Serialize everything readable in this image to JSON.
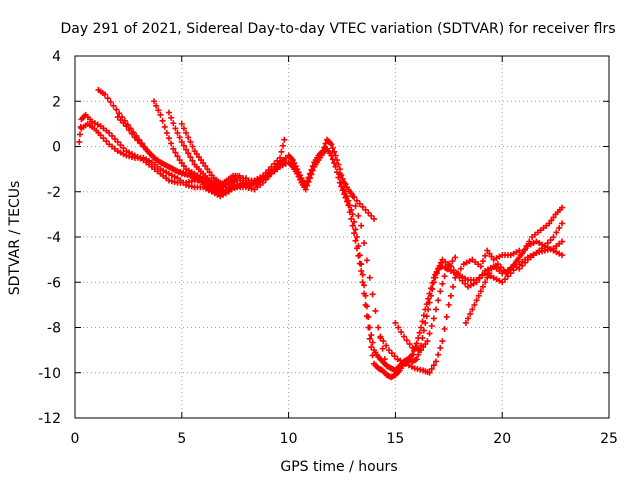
{
  "chart_data": {
    "type": "scatter",
    "title": "Day 291 of 2021, Sidereal Day-to-day VTEC variation (SDTVAR) for receiver flrs",
    "xlabel": "GPS time / hours",
    "ylabel": "SDTVAR / TECUs",
    "xlim": [
      0,
      25
    ],
    "ylim": [
      -12,
      4
    ],
    "xticks": [
      0,
      5,
      10,
      15,
      20,
      25
    ],
    "yticks": [
      -12,
      -10,
      -8,
      -6,
      -4,
      -2,
      0,
      2,
      4
    ],
    "grid": true,
    "marker": "plus",
    "series": [
      {
        "color": "#ff0000",
        "points": [
          [
            0.2,
            0.2
          ],
          [
            0.3,
            1.2
          ],
          [
            0.5,
            1.4
          ],
          [
            0.8,
            1.1
          ],
          [
            1.2,
            0.9
          ],
          [
            1.6,
            0.6
          ],
          [
            2.0,
            0.2
          ],
          [
            2.4,
            -0.2
          ],
          [
            2.8,
            -0.4
          ],
          [
            3.2,
            -0.6
          ],
          [
            3.6,
            -0.9
          ],
          [
            4.0,
            -1.2
          ],
          [
            4.4,
            -1.5
          ],
          [
            4.8,
            -1.6
          ],
          [
            5.2,
            -1.6
          ],
          [
            5.6,
            -1.5
          ],
          [
            6.0,
            -1.5
          ],
          [
            6.4,
            -1.8
          ],
          [
            6.8,
            -2.1
          ],
          [
            7.2,
            -1.9
          ],
          [
            7.6,
            -1.8
          ],
          [
            8.0,
            -1.8
          ],
          [
            8.4,
            -1.9
          ],
          [
            8.8,
            -1.6
          ],
          [
            9.2,
            -1.2
          ],
          [
            9.6,
            -0.9
          ],
          [
            10.0,
            -0.7
          ],
          [
            10.2,
            -0.9
          ],
          [
            10.4,
            -1.2
          ],
          [
            10.6,
            -1.6
          ],
          [
            10.8,
            -1.9
          ],
          [
            11.0,
            -1.4
          ],
          [
            11.2,
            -0.9
          ],
          [
            11.4,
            -0.6
          ],
          [
            11.6,
            -0.3
          ],
          [
            11.8,
            -0.1
          ],
          [
            12.0,
            -0.4
          ],
          [
            12.2,
            -0.9
          ],
          [
            12.4,
            -1.6
          ],
          [
            12.6,
            -2.1
          ],
          [
            12.8,
            -2.6
          ],
          [
            13.0,
            -3.5
          ],
          [
            13.2,
            -4.5
          ],
          [
            13.4,
            -5.5
          ],
          [
            13.6,
            -7.0
          ],
          [
            13.8,
            -8.5
          ],
          [
            14.0,
            -9.6
          ],
          [
            14.2,
            -9.8
          ],
          [
            14.4,
            -9.9
          ],
          [
            14.6,
            -10.1
          ],
          [
            14.8,
            -10.2
          ],
          [
            15.0,
            -10.1
          ],
          [
            15.2,
            -9.9
          ],
          [
            15.4,
            -9.6
          ],
          [
            15.6,
            -9.4
          ],
          [
            15.8,
            -9.2
          ],
          [
            16.0,
            -8.7
          ],
          [
            16.2,
            -8.0
          ],
          [
            16.4,
            -7.2
          ],
          [
            16.6,
            -6.5
          ],
          [
            16.8,
            -5.8
          ],
          [
            17.0,
            -5.4
          ],
          [
            17.2,
            -5.3
          ],
          [
            17.6,
            -5.5
          ],
          [
            18.0,
            -5.7
          ],
          [
            18.4,
            -5.9
          ],
          [
            18.8,
            -5.9
          ],
          [
            19.2,
            -5.6
          ],
          [
            19.6,
            -5.8
          ],
          [
            20.0,
            -6.0
          ],
          [
            20.4,
            -5.6
          ],
          [
            20.8,
            -5.2
          ],
          [
            21.2,
            -4.9
          ],
          [
            21.6,
            -4.7
          ],
          [
            22.0,
            -4.6
          ],
          [
            22.4,
            -4.5
          ],
          [
            22.8,
            -4.2
          ]
        ]
      },
      {
        "color": "#ff0000",
        "points": [
          [
            0.3,
            0.8
          ],
          [
            0.6,
            1.0
          ],
          [
            0.9,
            0.8
          ],
          [
            1.2,
            0.5
          ],
          [
            1.6,
            0.1
          ],
          [
            2.0,
            -0.2
          ],
          [
            2.4,
            -0.4
          ],
          [
            2.8,
            -0.5
          ],
          [
            3.2,
            -0.5
          ],
          [
            3.6,
            -0.7
          ],
          [
            4.0,
            -1.0
          ],
          [
            4.4,
            -1.2
          ],
          [
            4.8,
            -1.4
          ],
          [
            5.2,
            -1.7
          ],
          [
            5.6,
            -1.8
          ],
          [
            6.0,
            -1.8
          ],
          [
            6.4,
            -2.0
          ],
          [
            6.8,
            -2.2
          ],
          [
            7.2,
            -2.0
          ],
          [
            7.6,
            -1.7
          ],
          [
            8.0,
            -1.6
          ],
          [
            8.4,
            -1.6
          ],
          [
            8.8,
            -1.4
          ],
          [
            9.2,
            -1.0
          ],
          [
            9.6,
            -0.7
          ],
          [
            10.0,
            -0.4
          ],
          [
            10.2,
            -0.6
          ],
          [
            10.4,
            -1.0
          ],
          [
            10.6,
            -1.4
          ],
          [
            10.8,
            -1.7
          ],
          [
            11.0,
            -1.2
          ],
          [
            11.2,
            -0.7
          ],
          [
            11.4,
            -0.4
          ],
          [
            11.6,
            -0.2
          ],
          [
            11.8,
            0.3
          ],
          [
            12.0,
            0.1
          ],
          [
            12.2,
            -0.4
          ],
          [
            12.4,
            -1.0
          ],
          [
            12.6,
            -1.8
          ],
          [
            12.8,
            -2.4
          ],
          [
            13.0,
            -3.0
          ],
          [
            13.2,
            -4.0
          ],
          [
            13.4,
            -5.2
          ],
          [
            13.6,
            -6.6
          ],
          [
            13.8,
            -8.0
          ],
          [
            14.0,
            -9.0
          ],
          [
            14.2,
            -9.3
          ],
          [
            14.4,
            -9.5
          ],
          [
            14.6,
            -9.7
          ],
          [
            14.8,
            -9.8
          ],
          [
            15.0,
            -9.9
          ],
          [
            15.2,
            -9.7
          ],
          [
            15.4,
            -9.5
          ],
          [
            15.6,
            -9.4
          ],
          [
            15.8,
            -9.5
          ],
          [
            16.0,
            -9.4
          ],
          [
            16.2,
            -8.8
          ],
          [
            16.4,
            -7.8
          ],
          [
            16.6,
            -6.9
          ],
          [
            16.8,
            -6.0
          ],
          [
            17.0,
            -5.4
          ],
          [
            17.2,
            -5.0
          ],
          [
            17.6,
            -5.3
          ],
          [
            18.0,
            -5.8
          ],
          [
            18.4,
            -6.2
          ],
          [
            18.8,
            -6.0
          ],
          [
            19.2,
            -5.5
          ],
          [
            19.6,
            -5.3
          ],
          [
            20.0,
            -5.6
          ],
          [
            20.4,
            -5.4
          ],
          [
            20.8,
            -4.9
          ],
          [
            21.2,
            -4.4
          ],
          [
            21.6,
            -4.2
          ],
          [
            22.0,
            -4.4
          ],
          [
            22.4,
            -4.6
          ],
          [
            22.8,
            -4.8
          ]
        ]
      },
      {
        "color": "#ff0000",
        "points": [
          [
            1.1,
            2.5
          ],
          [
            1.4,
            2.3
          ],
          [
            1.8,
            1.8
          ],
          [
            2.2,
            1.3
          ],
          [
            2.6,
            0.8
          ],
          [
            3.0,
            0.3
          ],
          [
            3.4,
            -0.2
          ],
          [
            3.8,
            -0.6
          ],
          [
            4.2,
            -0.8
          ],
          [
            4.6,
            -1.0
          ],
          [
            5.0,
            -1.2
          ],
          [
            5.4,
            -1.3
          ],
          [
            5.8,
            -1.5
          ],
          [
            6.2,
            -1.7
          ],
          [
            6.6,
            -1.9
          ],
          [
            7.0,
            -2.0
          ],
          [
            7.4,
            -1.8
          ],
          [
            7.8,
            -1.7
          ],
          [
            8.2,
            -1.7
          ],
          [
            8.6,
            -1.6
          ],
          [
            9.0,
            -1.3
          ],
          [
            9.4,
            -1.0
          ],
          [
            9.8,
            -0.6
          ]
        ]
      },
      {
        "color": "#ff0000",
        "points": [
          [
            2.0,
            1.3
          ],
          [
            2.4,
            0.9
          ],
          [
            2.8,
            0.4
          ],
          [
            3.2,
            0.0
          ],
          [
            3.6,
            -0.4
          ],
          [
            4.0,
            -0.7
          ],
          [
            4.4,
            -0.9
          ],
          [
            4.8,
            -1.1
          ],
          [
            5.2,
            -1.2
          ],
          [
            5.6,
            -1.3
          ],
          [
            6.0,
            -1.6
          ],
          [
            6.4,
            -1.9
          ],
          [
            6.8,
            -2.0
          ],
          [
            7.2,
            -1.7
          ],
          [
            7.6,
            -1.5
          ],
          [
            8.0,
            -1.5
          ],
          [
            8.4,
            -1.5
          ],
          [
            8.8,
            -1.3
          ],
          [
            9.2,
            -0.9
          ],
          [
            9.6,
            -0.5
          ],
          [
            9.8,
            0.3
          ]
        ]
      },
      {
        "color": "#ff0000",
        "points": [
          [
            3.7,
            2.0
          ],
          [
            4.0,
            1.4
          ],
          [
            4.3,
            0.6
          ],
          [
            4.6,
            -0.1
          ],
          [
            4.9,
            -0.6
          ],
          [
            5.2,
            -1.0
          ],
          [
            5.6,
            -1.2
          ],
          [
            6.0,
            -1.4
          ],
          [
            6.4,
            -1.6
          ],
          [
            6.8,
            -1.8
          ],
          [
            7.2,
            -1.6
          ],
          [
            7.6,
            -1.4
          ],
          [
            8.0,
            -1.4
          ]
        ]
      },
      {
        "color": "#ff0000",
        "points": [
          [
            4.4,
            1.5
          ],
          [
            4.7,
            0.8
          ],
          [
            5.0,
            0.2
          ],
          [
            5.3,
            -0.3
          ],
          [
            5.6,
            -0.8
          ],
          [
            5.9,
            -1.1
          ],
          [
            6.2,
            -1.4
          ],
          [
            6.5,
            -1.6
          ],
          [
            6.8,
            -1.7
          ],
          [
            7.1,
            -1.5
          ],
          [
            7.4,
            -1.3
          ],
          [
            7.7,
            -1.3
          ]
        ]
      },
      {
        "color": "#ff0000",
        "points": [
          [
            5.0,
            1.0
          ],
          [
            5.3,
            0.4
          ],
          [
            5.6,
            -0.2
          ],
          [
            5.9,
            -0.6
          ],
          [
            6.2,
            -1.0
          ],
          [
            6.5,
            -1.4
          ],
          [
            6.8,
            -1.6
          ]
        ]
      },
      {
        "color": "#ff0000",
        "points": [
          [
            12.4,
            -1.2
          ],
          [
            12.8,
            -1.9
          ],
          [
            13.2,
            -2.4
          ],
          [
            13.6,
            -2.8
          ],
          [
            14.0,
            -3.2
          ]
        ]
      },
      {
        "color": "#ff0000",
        "points": [
          [
            12.6,
            -1.6
          ],
          [
            13.0,
            -2.2
          ],
          [
            13.4,
            -3.5
          ],
          [
            13.8,
            -5.8
          ],
          [
            14.2,
            -8.0
          ],
          [
            14.5,
            -9.4
          ]
        ]
      },
      {
        "color": "#ff0000",
        "points": [
          [
            14.3,
            -8.4
          ],
          [
            14.7,
            -9.0
          ],
          [
            15.1,
            -9.4
          ],
          [
            15.5,
            -9.6
          ],
          [
            15.9,
            -9.8
          ],
          [
            16.3,
            -9.9
          ],
          [
            16.6,
            -10.0
          ],
          [
            16.9,
            -9.5
          ],
          [
            17.2,
            -8.6
          ],
          [
            17.5,
            -7.0
          ],
          [
            17.8,
            -5.8
          ],
          [
            18.2,
            -5.2
          ],
          [
            18.6,
            -5.0
          ],
          [
            19.0,
            -5.3
          ],
          [
            19.3,
            -4.6
          ],
          [
            19.6,
            -5.0
          ],
          [
            20.0,
            -4.8
          ],
          [
            20.4,
            -4.8
          ],
          [
            20.8,
            -4.6
          ]
        ]
      },
      {
        "color": "#ff0000",
        "points": [
          [
            15.0,
            -7.8
          ],
          [
            15.4,
            -8.4
          ],
          [
            15.8,
            -8.9
          ],
          [
            16.2,
            -9.0
          ],
          [
            16.5,
            -8.6
          ],
          [
            16.8,
            -7.6
          ],
          [
            17.1,
            -6.4
          ],
          [
            17.4,
            -5.4
          ],
          [
            17.8,
            -4.9
          ]
        ]
      },
      {
        "color": "#ff0000",
        "points": [
          [
            18.3,
            -7.8
          ],
          [
            18.6,
            -7.2
          ],
          [
            18.9,
            -6.6
          ],
          [
            19.2,
            -6.0
          ],
          [
            19.5,
            -5.4
          ],
          [
            19.8,
            -5.2
          ],
          [
            20.2,
            -5.6
          ],
          [
            20.6,
            -5.2
          ],
          [
            21.0,
            -4.6
          ],
          [
            21.4,
            -4.0
          ],
          [
            21.8,
            -3.7
          ],
          [
            22.2,
            -3.4
          ],
          [
            22.5,
            -3.0
          ],
          [
            22.8,
            -2.7
          ]
        ]
      },
      {
        "color": "#ff0000",
        "points": [
          [
            20.8,
            -5.4
          ],
          [
            21.2,
            -5.0
          ],
          [
            21.6,
            -4.7
          ],
          [
            22.0,
            -4.4
          ],
          [
            22.4,
            -4.0
          ],
          [
            22.8,
            -3.4
          ]
        ]
      }
    ]
  }
}
